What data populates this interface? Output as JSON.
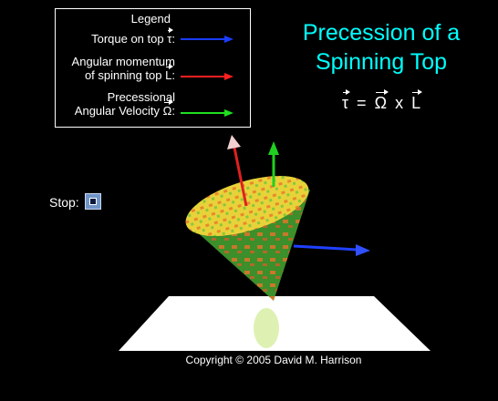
{
  "legend": {
    "title": "Legend",
    "items": [
      {
        "lines": [
          "Torque on top"
        ],
        "symbol": "τ",
        "suffix": ":"
      },
      {
        "lines": [
          "Angular momentum",
          "of spinning top"
        ],
        "symbol": "L",
        "suffix": ":"
      },
      {
        "lines": [
          "Precessional",
          "Angular Velocity"
        ],
        "symbol": "Ω",
        "suffix": ":"
      }
    ]
  },
  "title": [
    "Precession of a",
    "Spinning Top"
  ],
  "formula": {
    "lhs": "τ",
    "eq": "=",
    "omega": "Ω",
    "op": "x",
    "rhs": "L"
  },
  "control": {
    "label": "Stop:"
  },
  "copyright": "Copyright © 2005 David M. Harrison"
}
